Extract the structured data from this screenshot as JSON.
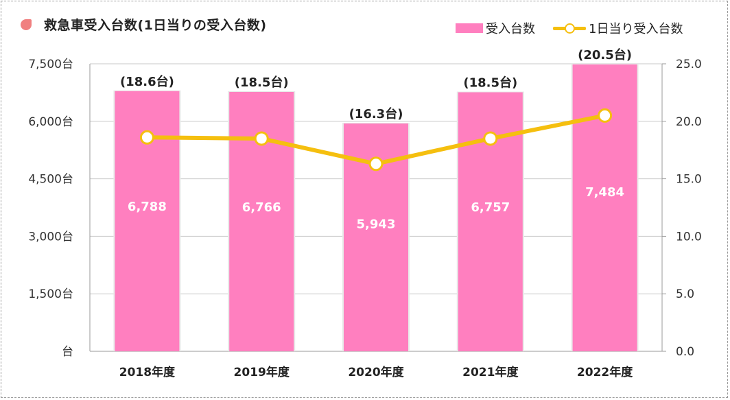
{
  "title": "救急車受入台数(1日当りの受入台数)",
  "legend": {
    "bar_label": "受入台数",
    "line_label": "1日当り受入台数"
  },
  "colors": {
    "bar": "#ff7fbf",
    "line": "#f5bf0f",
    "title_marker": "#f08080"
  },
  "chart_data": {
    "type": "bar",
    "categories": [
      "2018年度",
      "2019年度",
      "2020年度",
      "2021年度",
      "2022年度"
    ],
    "series": [
      {
        "name": "受入台数",
        "type": "bar",
        "axis": "left",
        "values": [
          6788,
          6766,
          5943,
          6757,
          7484
        ],
        "labels": [
          "6,788",
          "6,766",
          "5,943",
          "6,757",
          "7,484"
        ]
      },
      {
        "name": "1日当り受入台数",
        "type": "line",
        "axis": "right",
        "values": [
          18.6,
          18.5,
          16.3,
          18.5,
          20.5
        ],
        "labels": [
          "(18.6台)",
          "(18.5台)",
          "(16.3台)",
          "(18.5台)",
          "(20.5台)"
        ]
      }
    ],
    "y_left": {
      "min": 0,
      "max": 7500,
      "ticks": [
        0,
        1500,
        3000,
        4500,
        6000,
        7500
      ],
      "tick_labels": [
        "台",
        "1,500台",
        "3,000台",
        "4,500台",
        "6,000台",
        "7,500台"
      ]
    },
    "y_right": {
      "min": 0,
      "max": 25,
      "ticks": [
        0,
        5,
        10,
        15,
        20,
        25
      ],
      "tick_labels": [
        "0.0",
        "5.0",
        "10.0",
        "15.0",
        "20.0",
        "25.0"
      ]
    },
    "grid": true
  }
}
